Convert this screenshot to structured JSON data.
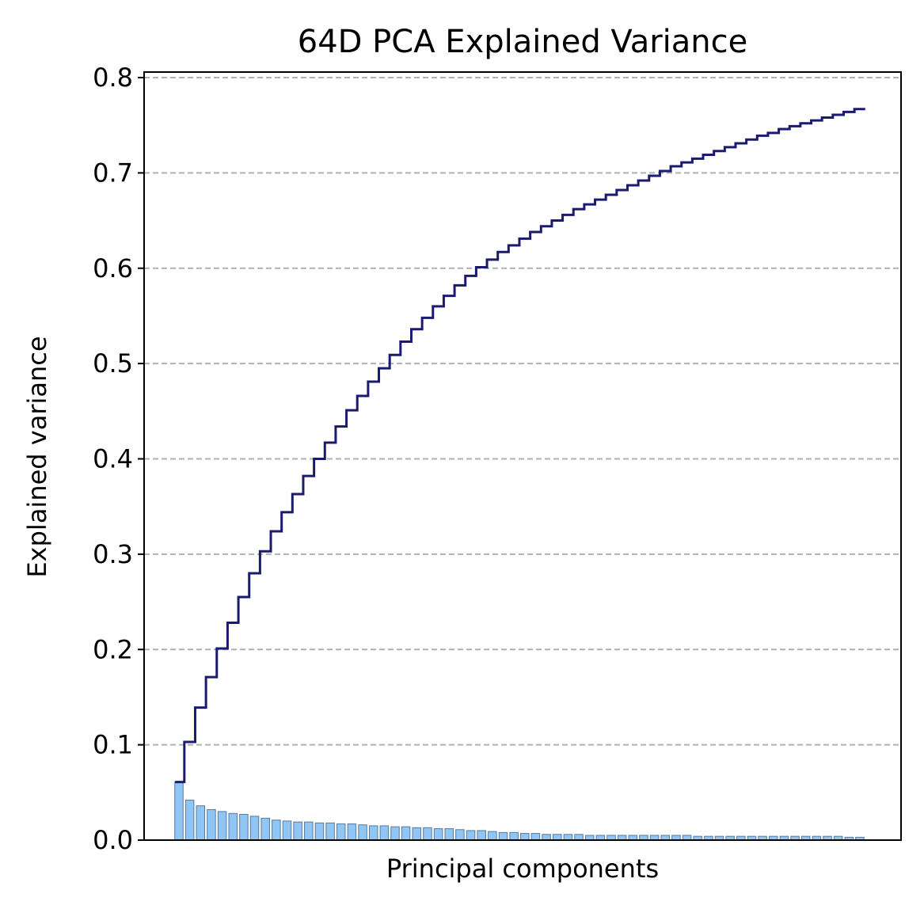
{
  "chart_data": {
    "type": "bar",
    "title": "64D PCA Explained Variance",
    "xlabel": "Principal components",
    "ylabel": "Explained variance",
    "ylim": [
      0,
      0.8
    ],
    "yticks": [
      "0.0",
      "0.1",
      "0.2",
      "0.3",
      "0.4",
      "0.5",
      "0.6",
      "0.7",
      "0.8"
    ],
    "grid": "y-dashed",
    "x": [
      1,
      2,
      3,
      4,
      5,
      6,
      7,
      8,
      9,
      10,
      11,
      12,
      13,
      14,
      15,
      16,
      17,
      18,
      19,
      20,
      21,
      22,
      23,
      24,
      25,
      26,
      27,
      28,
      29,
      30,
      31,
      32,
      33,
      34,
      35,
      36,
      37,
      38,
      39,
      40,
      41,
      42,
      43,
      44,
      45,
      46,
      47,
      48,
      49,
      50,
      51,
      52,
      53,
      54,
      55,
      56,
      57,
      58,
      59,
      60,
      61,
      62,
      63,
      64
    ],
    "series": [
      {
        "type": "bar",
        "color": "#90c6f5",
        "edgecolor": "#5a7a99",
        "values": [
          0.061,
          0.042,
          0.036,
          0.032,
          0.03,
          0.028,
          0.027,
          0.025,
          0.023,
          0.021,
          0.02,
          0.019,
          0.019,
          0.018,
          0.018,
          0.017,
          0.017,
          0.016,
          0.015,
          0.015,
          0.014,
          0.014,
          0.013,
          0.013,
          0.012,
          0.012,
          0.011,
          0.01,
          0.01,
          0.009,
          0.008,
          0.008,
          0.007,
          0.007,
          0.006,
          0.006,
          0.006,
          0.006,
          0.005,
          0.005,
          0.005,
          0.005,
          0.005,
          0.005,
          0.005,
          0.005,
          0.005,
          0.005,
          0.004,
          0.004,
          0.004,
          0.004,
          0.004,
          0.004,
          0.004,
          0.004,
          0.004,
          0.004,
          0.004,
          0.004,
          0.004,
          0.004,
          0.003,
          0.003
        ]
      },
      {
        "type": "step",
        "color": "#1a1a6e",
        "values": [
          0.061,
          0.103,
          0.139,
          0.171,
          0.201,
          0.228,
          0.255,
          0.28,
          0.303,
          0.324,
          0.344,
          0.363,
          0.382,
          0.4,
          0.417,
          0.434,
          0.451,
          0.466,
          0.481,
          0.495,
          0.509,
          0.523,
          0.536,
          0.548,
          0.56,
          0.571,
          0.582,
          0.592,
          0.601,
          0.609,
          0.617,
          0.624,
          0.631,
          0.638,
          0.644,
          0.65,
          0.656,
          0.662,
          0.667,
          0.672,
          0.677,
          0.682,
          0.687,
          0.692,
          0.697,
          0.702,
          0.707,
          0.711,
          0.715,
          0.719,
          0.723,
          0.727,
          0.731,
          0.735,
          0.739,
          0.742,
          0.746,
          0.749,
          0.752,
          0.755,
          0.758,
          0.761,
          0.764,
          0.767
        ]
      }
    ]
  }
}
